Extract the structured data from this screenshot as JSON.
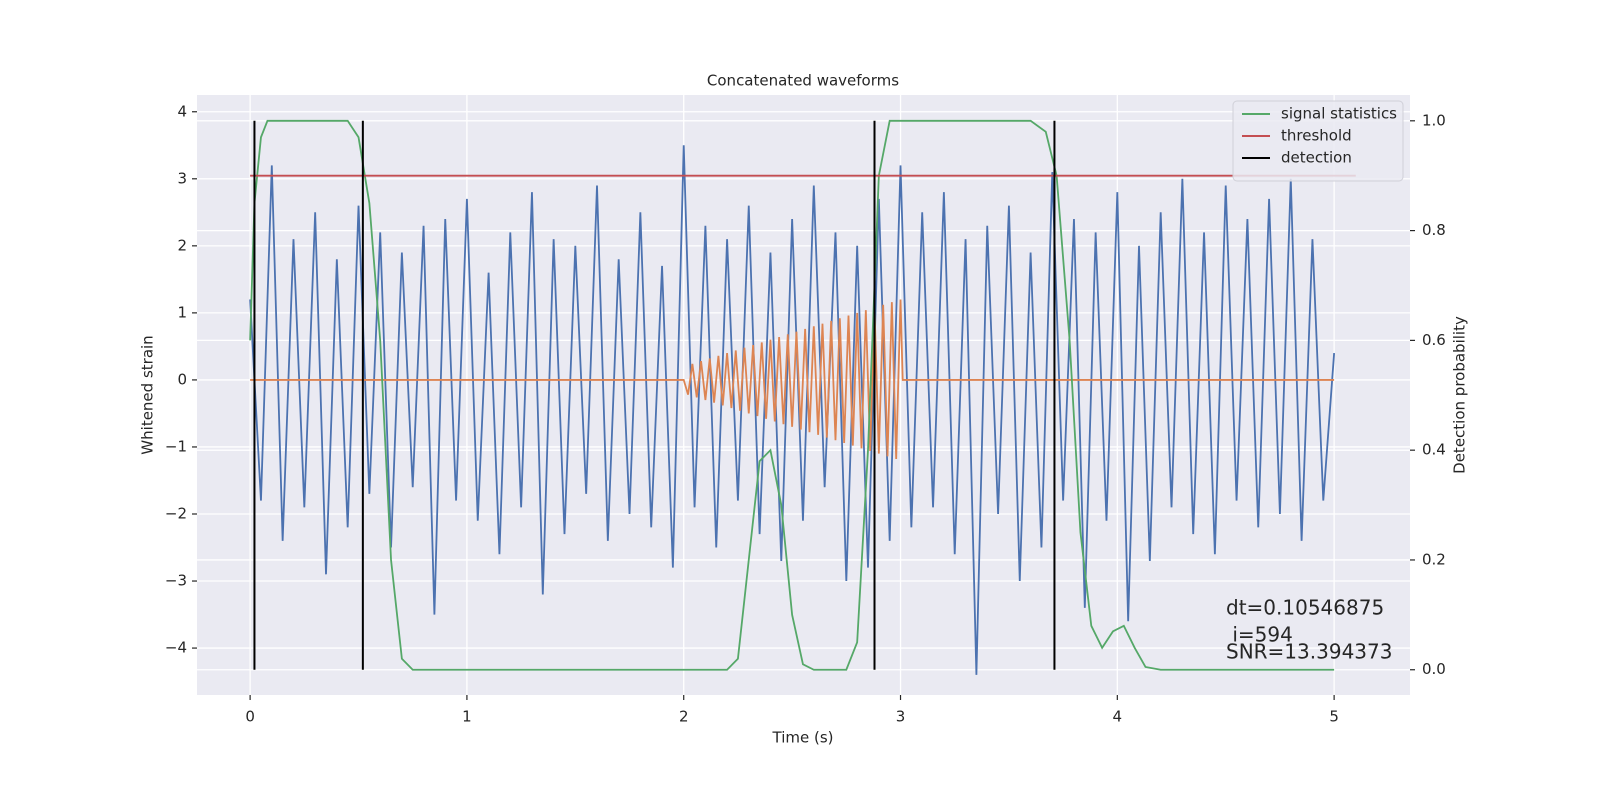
{
  "chart_data": {
    "type": "line",
    "title": "Concatenated waveforms",
    "x_label": "Time (s)",
    "y_label": "Whitened strain",
    "y2_label": "Detection probability",
    "xlim": [
      -0.245,
      5.35
    ],
    "ylim": [
      -4.7,
      4.25
    ],
    "y2lim": [
      -0.046,
      1.047
    ],
    "xticks": [
      0,
      1,
      2,
      3,
      4,
      5
    ],
    "yticks": [
      {
        "value": -4,
        "label": "−4"
      },
      {
        "value": -3,
        "label": "−3"
      },
      {
        "value": -2,
        "label": "−2"
      },
      {
        "value": -1,
        "label": "−1"
      },
      0,
      1,
      2,
      3,
      4
    ],
    "y2ticks": [
      {
        "value": 0,
        "label": "0.0"
      },
      0.2,
      0.4,
      0.6,
      0.8,
      {
        "value": 1,
        "label": "1.0"
      }
    ],
    "grid": true,
    "legend": "upper right",
    "series": [
      {
        "color": "#4c72b0",
        "axis": "y",
        "x": [
          0,
          0.05,
          0.1,
          0.15,
          0.2,
          0.25,
          0.3,
          0.35,
          0.4,
          0.45,
          0.5,
          0.55,
          0.6,
          0.65,
          0.7,
          0.75,
          0.8,
          0.85,
          0.9,
          0.95,
          1,
          1.05,
          1.1,
          1.15,
          1.2,
          1.25,
          1.3,
          1.35,
          1.4,
          1.45,
          1.5,
          1.55,
          1.6,
          1.65,
          1.7,
          1.75,
          1.8,
          1.85,
          1.9,
          1.95,
          2,
          2.05,
          2.1,
          2.15,
          2.2,
          2.25,
          2.3,
          2.35,
          2.4,
          2.45,
          2.5,
          2.55,
          2.6,
          2.65,
          2.7,
          2.75,
          2.8,
          2.85,
          2.9,
          2.95,
          3,
          3.05,
          3.1,
          3.15,
          3.2,
          3.25,
          3.3,
          3.35,
          3.4,
          3.45,
          3.5,
          3.55,
          3.6,
          3.65,
          3.7,
          3.75,
          3.8,
          3.85,
          3.9,
          3.95,
          4,
          4.05,
          4.1,
          4.15,
          4.2,
          4.25,
          4.3,
          4.35,
          4.4,
          4.45,
          4.5,
          4.55,
          4.6,
          4.65,
          4.7,
          4.75,
          4.8,
          4.85,
          4.9,
          4.95,
          5
        ],
        "values": [
          1.2,
          -1.8,
          3.2,
          -2.4,
          2.1,
          -1.9,
          2.5,
          -2.9,
          1.8,
          -2.2,
          2.6,
          -1.7,
          2.2,
          -2.5,
          1.9,
          -1.6,
          2.3,
          -3.5,
          2.4,
          -1.8,
          2.7,
          -2.1,
          1.6,
          -2.6,
          2.2,
          -1.9,
          2.8,
          -3.2,
          2.1,
          -2.3,
          2.0,
          -1.7,
          2.9,
          -2.4,
          1.8,
          -2.0,
          2.5,
          -2.2,
          1.7,
          -2.8,
          3.5,
          -1.9,
          2.3,
          -2.5,
          2.1,
          -1.8,
          2.6,
          -2.3,
          1.9,
          -2.7,
          2.4,
          -2.1,
          2.9,
          -1.6,
          2.2,
          -3.0,
          2.0,
          -2.8,
          2.7,
          -2.4,
          3.2,
          -2.2,
          2.5,
          -1.9,
          2.8,
          -2.6,
          2.1,
          -4.4,
          2.3,
          -2.0,
          2.6,
          -3.0,
          1.9,
          -2.5,
          3.1,
          -1.8,
          2.4,
          -3.4,
          2.2,
          -2.1,
          2.8,
          -3.6,
          2.0,
          -2.7,
          2.5,
          -1.9,
          3.0,
          -2.3,
          2.2,
          -2.6,
          2.9,
          -1.8,
          2.4,
          -2.2,
          2.7,
          -2.0,
          3.0,
          -2.4,
          2.1,
          -1.8,
          0.4
        ]
      },
      {
        "color": "#dd8452",
        "axis": "y",
        "x": [
          0,
          2,
          2.02,
          2.04,
          2.06,
          2.08,
          2.1,
          2.12,
          2.14,
          2.16,
          2.18,
          2.2,
          2.22,
          2.24,
          2.26,
          2.28,
          2.3,
          2.32,
          2.34,
          2.36,
          2.38,
          2.4,
          2.42,
          2.44,
          2.46,
          2.48,
          2.5,
          2.52,
          2.54,
          2.56,
          2.58,
          2.6,
          2.62,
          2.64,
          2.66,
          2.68,
          2.7,
          2.72,
          2.74,
          2.76,
          2.78,
          2.8,
          2.82,
          2.84,
          2.86,
          2.88,
          2.9,
          2.92,
          2.94,
          2.96,
          2.98,
          3,
          3.01,
          5
        ],
        "values": [
          0,
          0,
          -0.22,
          0.24,
          -0.26,
          0.28,
          -0.3,
          0.32,
          -0.34,
          0.36,
          -0.38,
          0.4,
          -0.42,
          0.44,
          -0.46,
          0.48,
          -0.5,
          0.52,
          -0.54,
          0.56,
          -0.58,
          0.6,
          -0.62,
          0.64,
          -0.66,
          0.68,
          -0.7,
          0.72,
          -0.74,
          0.76,
          -0.78,
          0.8,
          -0.82,
          0.84,
          -0.86,
          0.88,
          -0.9,
          0.92,
          -0.94,
          0.96,
          -0.98,
          1.0,
          -1.02,
          1.04,
          -1.06,
          1.08,
          -1.1,
          1.12,
          -1.14,
          1.16,
          -1.18,
          1.2,
          0,
          0
        ]
      },
      {
        "name": "signal statistics",
        "color": "#55a868",
        "axis": "y2",
        "x": [
          0,
          0.02,
          0.05,
          0.08,
          0.45,
          0.5,
          0.55,
          0.6,
          0.65,
          0.7,
          0.75,
          2.2,
          2.25,
          2.3,
          2.35,
          2.4,
          2.45,
          2.5,
          2.55,
          2.6,
          2.75,
          2.8,
          2.85,
          2.9,
          2.95,
          3.6,
          3.67,
          3.72,
          3.78,
          3.83,
          3.88,
          3.93,
          3.98,
          4.03,
          4.08,
          4.13,
          4.2,
          5
        ],
        "values": [
          0.6,
          0.85,
          0.97,
          1.0,
          1.0,
          0.97,
          0.85,
          0.6,
          0.2,
          0.02,
          0,
          0,
          0.02,
          0.2,
          0.38,
          0.4,
          0.3,
          0.1,
          0.01,
          0,
          0,
          0.05,
          0.4,
          0.9,
          1.0,
          1.0,
          0.98,
          0.9,
          0.6,
          0.25,
          0.08,
          0.04,
          0.07,
          0.08,
          0.04,
          0.005,
          0,
          0
        ]
      },
      {
        "name": "threshold",
        "color": "#c44e52",
        "axis": "y2",
        "x": [
          0,
          5.1
        ],
        "values": [
          0.9,
          0.9
        ]
      }
    ],
    "detections": {
      "name": "detection",
      "color": "#000000",
      "x": [
        0.02,
        0.52,
        2.88,
        3.71
      ]
    },
    "annotations": [
      "dt=0.10546875",
      " i=594",
      "SNR=13.394373"
    ]
  }
}
